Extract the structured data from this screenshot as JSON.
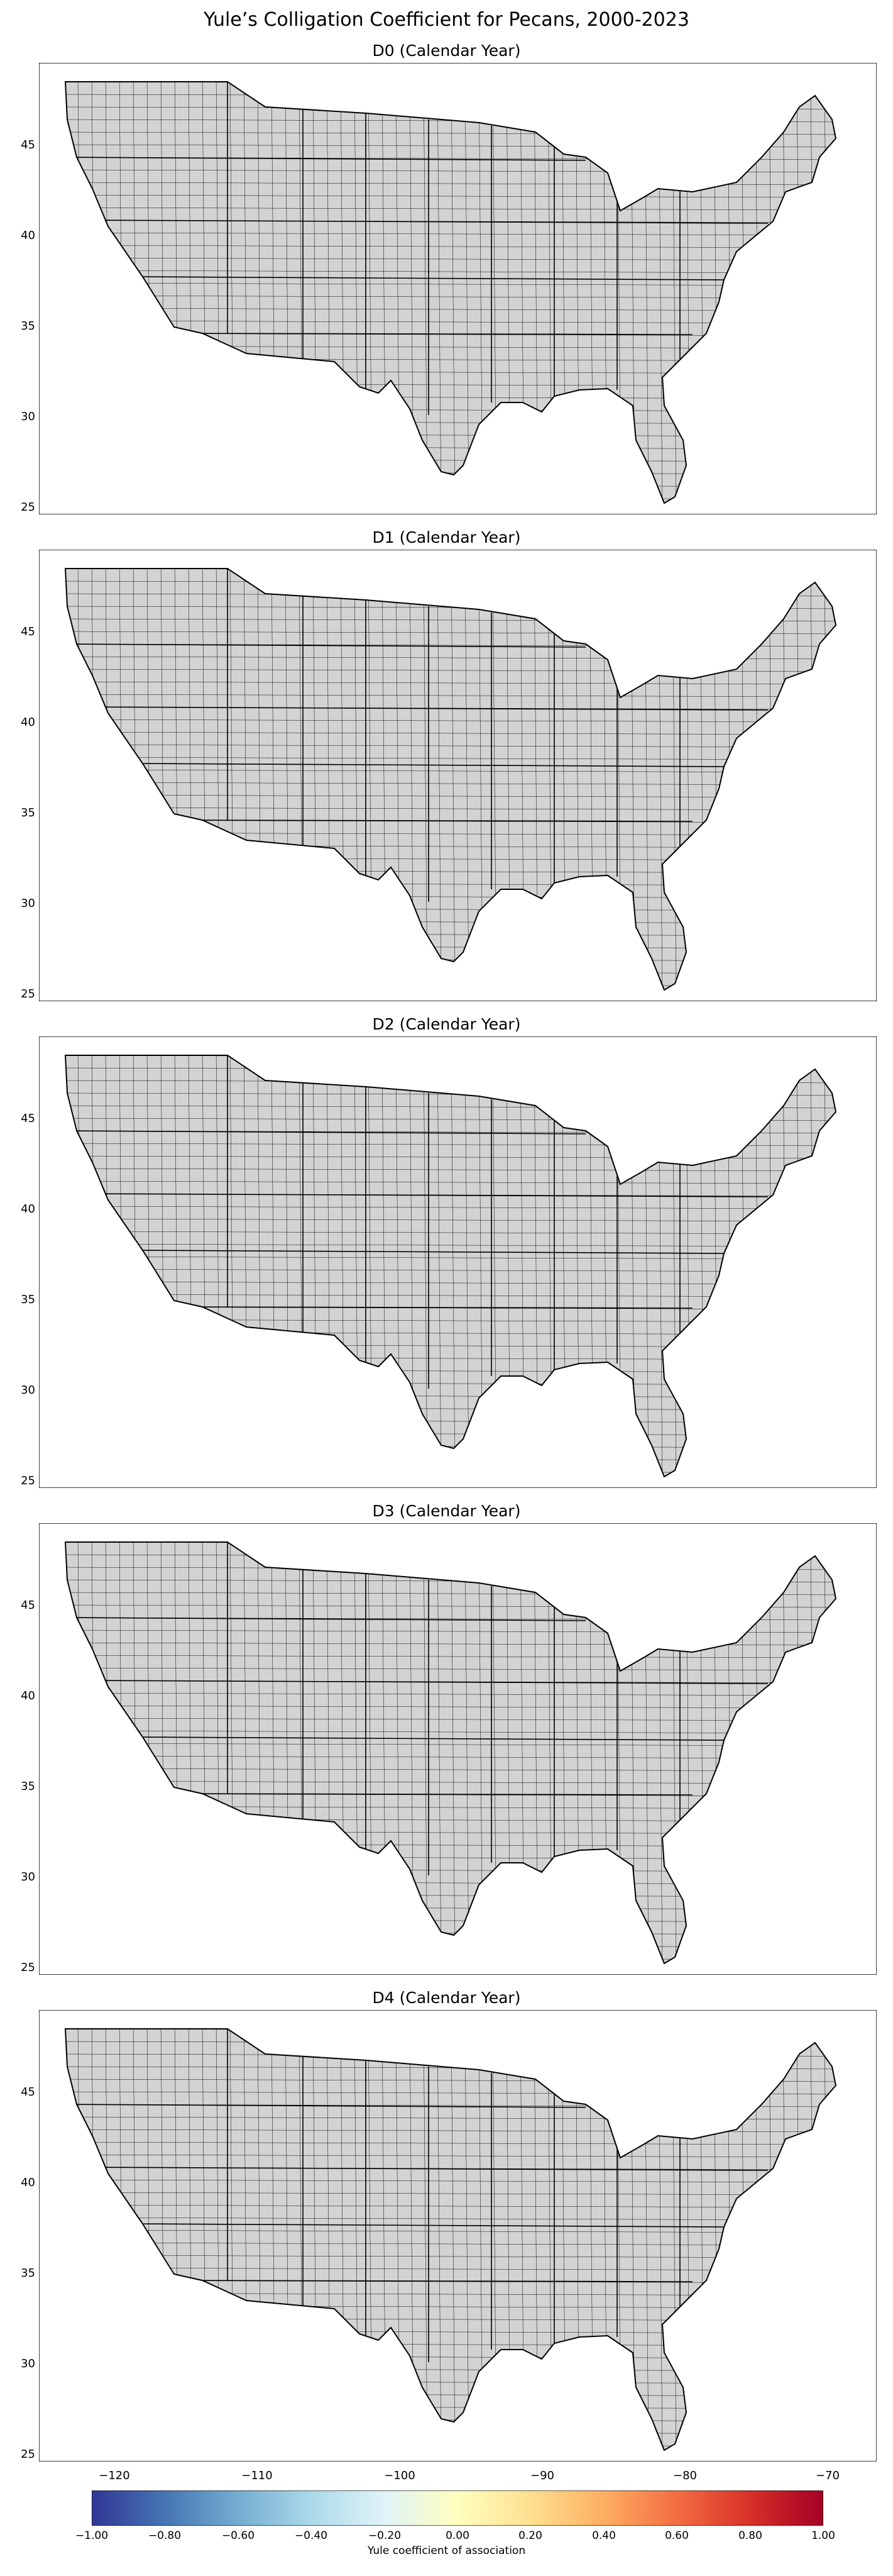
{
  "figure": {
    "title": "Yule’s Colligation Coefficient for Pecans, 2000-2023"
  },
  "panels": [
    {
      "title": "D0 (Calendar Year)"
    },
    {
      "title": "D1 (Calendar Year)"
    },
    {
      "title": "D2 (Calendar Year)"
    },
    {
      "title": "D3 (Calendar Year)"
    },
    {
      "title": "D4 (Calendar Year)"
    }
  ],
  "axes": {
    "y_ticks": [
      "45",
      "40",
      "35",
      "30",
      "25"
    ],
    "x_ticks": [
      "−120",
      "−110",
      "−100",
      "−90",
      "−80",
      "−70"
    ]
  },
  "colorbar": {
    "label": "Yule coefficient of association",
    "ticks": [
      "−1.00",
      "−0.80",
      "−0.60",
      "−0.40",
      "−0.20",
      "0.00",
      "0.20",
      "0.40",
      "0.60",
      "0.80",
      "1.00"
    ],
    "colormap": [
      "#313695",
      "#4575b4",
      "#74add1",
      "#abd9e9",
      "#e0f3f8",
      "#ffffbf",
      "#fee090",
      "#fdae61",
      "#f46d43",
      "#d73027",
      "#a50026"
    ]
  },
  "map_style": {
    "county_fill": "#d3d3d3",
    "border_color": "#000000"
  }
}
